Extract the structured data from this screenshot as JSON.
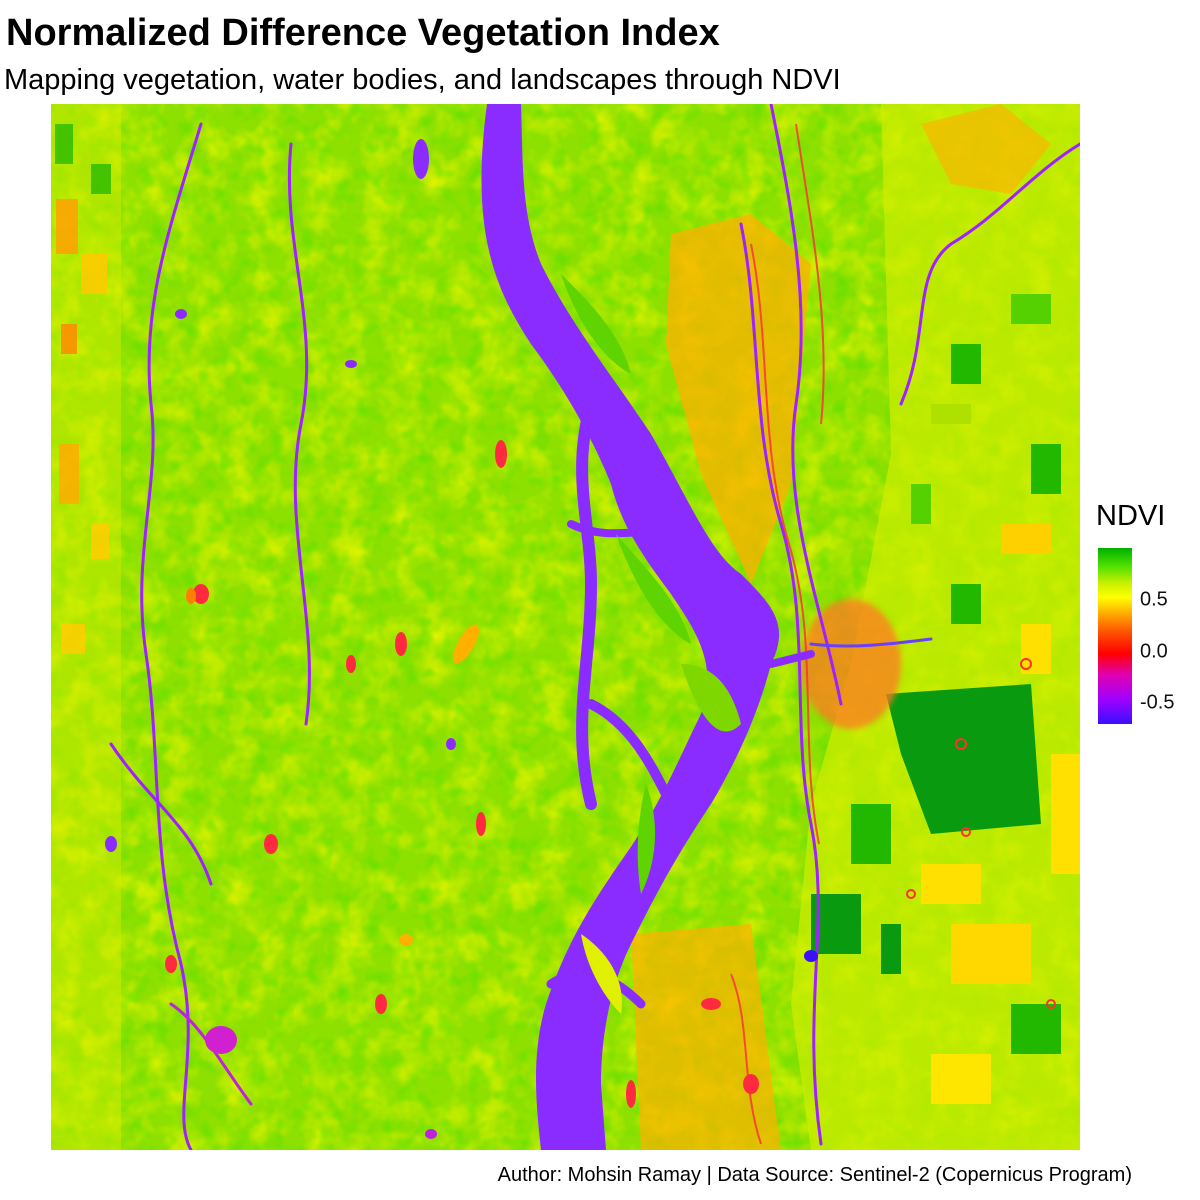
{
  "title": "Normalized Difference Vegetation Index",
  "subtitle": "Mapping vegetation, water bodies, and landscapes through NDVI",
  "caption": "Author: Mohsin Ramay | Data Source: Sentinel-2 (Copernicus Program)",
  "legend": {
    "title": "NDVI",
    "range": [
      -0.7,
      1.0
    ],
    "ticks": [
      {
        "value": 0.5,
        "label": "0.5"
      },
      {
        "value": 0.0,
        "label": "0.0"
      },
      {
        "value": -0.5,
        "label": "-0.5"
      }
    ],
    "colors": {
      "max": "#00b000",
      "high": "#ffff00",
      "mid_high": "#ffa500",
      "zero": "#ff0000",
      "mid_low": "#e000b0",
      "low": "#a000ff",
      "min": "#3a10ff"
    }
  },
  "map": {
    "colors": {
      "vegetation": "#8ee000",
      "dense_vegetation": "#22c000",
      "dense_crop": "#0a9a10",
      "sparse": "#e8f000",
      "bare": "#ffb800",
      "urban": "#ff7a20",
      "wet": "#ff2a40",
      "water": "#8a2cff"
    }
  }
}
